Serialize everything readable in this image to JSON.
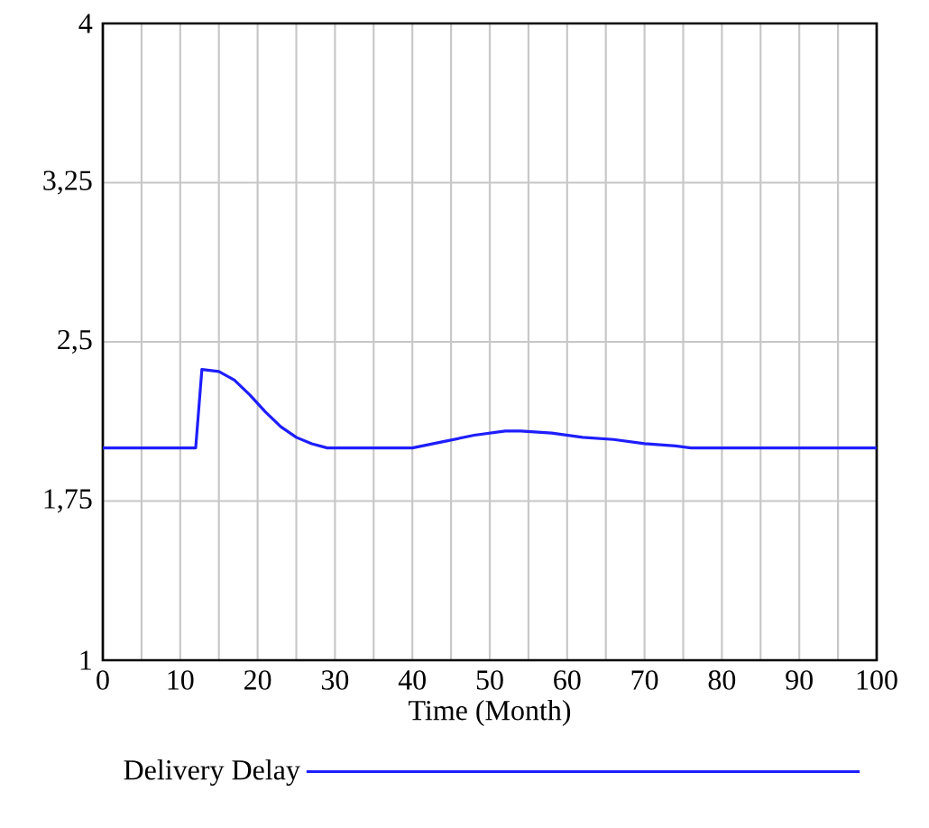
{
  "chart_data": {
    "type": "line",
    "xlabel": "Time (Month)",
    "x": [
      0,
      12,
      12.8,
      15,
      17,
      19,
      21,
      23,
      25,
      27,
      29,
      40,
      44,
      48,
      52,
      54,
      58,
      62,
      66,
      70,
      74,
      76,
      100
    ],
    "series": [
      {
        "name": "Delivery Delay",
        "color": "#1e1eff",
        "values": [
          2.0,
          2.0,
          2.37,
          2.36,
          2.32,
          2.25,
          2.17,
          2.1,
          2.05,
          2.02,
          2.0,
          2.0,
          2.03,
          2.06,
          2.08,
          2.08,
          2.07,
          2.05,
          2.04,
          2.02,
          2.01,
          2.0,
          2.0
        ]
      }
    ],
    "xlim": [
      0,
      100
    ],
    "xticks": [
      0,
      {
        "value": 5,
        "label": null
      },
      10,
      {
        "value": 15,
        "label": null
      },
      20,
      {
        "value": 25,
        "label": null
      },
      30,
      {
        "value": 35,
        "label": null
      },
      40,
      {
        "value": 45,
        "label": null
      },
      50,
      {
        "value": 55,
        "label": null
      },
      60,
      {
        "value": 65,
        "label": null
      },
      70,
      {
        "value": 75,
        "label": null
      },
      80,
      {
        "value": 85,
        "label": null
      },
      90,
      {
        "value": 95,
        "label": null
      },
      100
    ],
    "ylim": [
      1,
      4
    ],
    "yticks": [
      1,
      {
        "value": 1.75,
        "label": "1,75"
      },
      {
        "value": 2.5,
        "label": "2,5"
      },
      {
        "value": 3.25,
        "label": "3,25"
      },
      4
    ],
    "grid": true,
    "legend": "bottom",
    "marker": "none",
    "line_style": "solid"
  }
}
